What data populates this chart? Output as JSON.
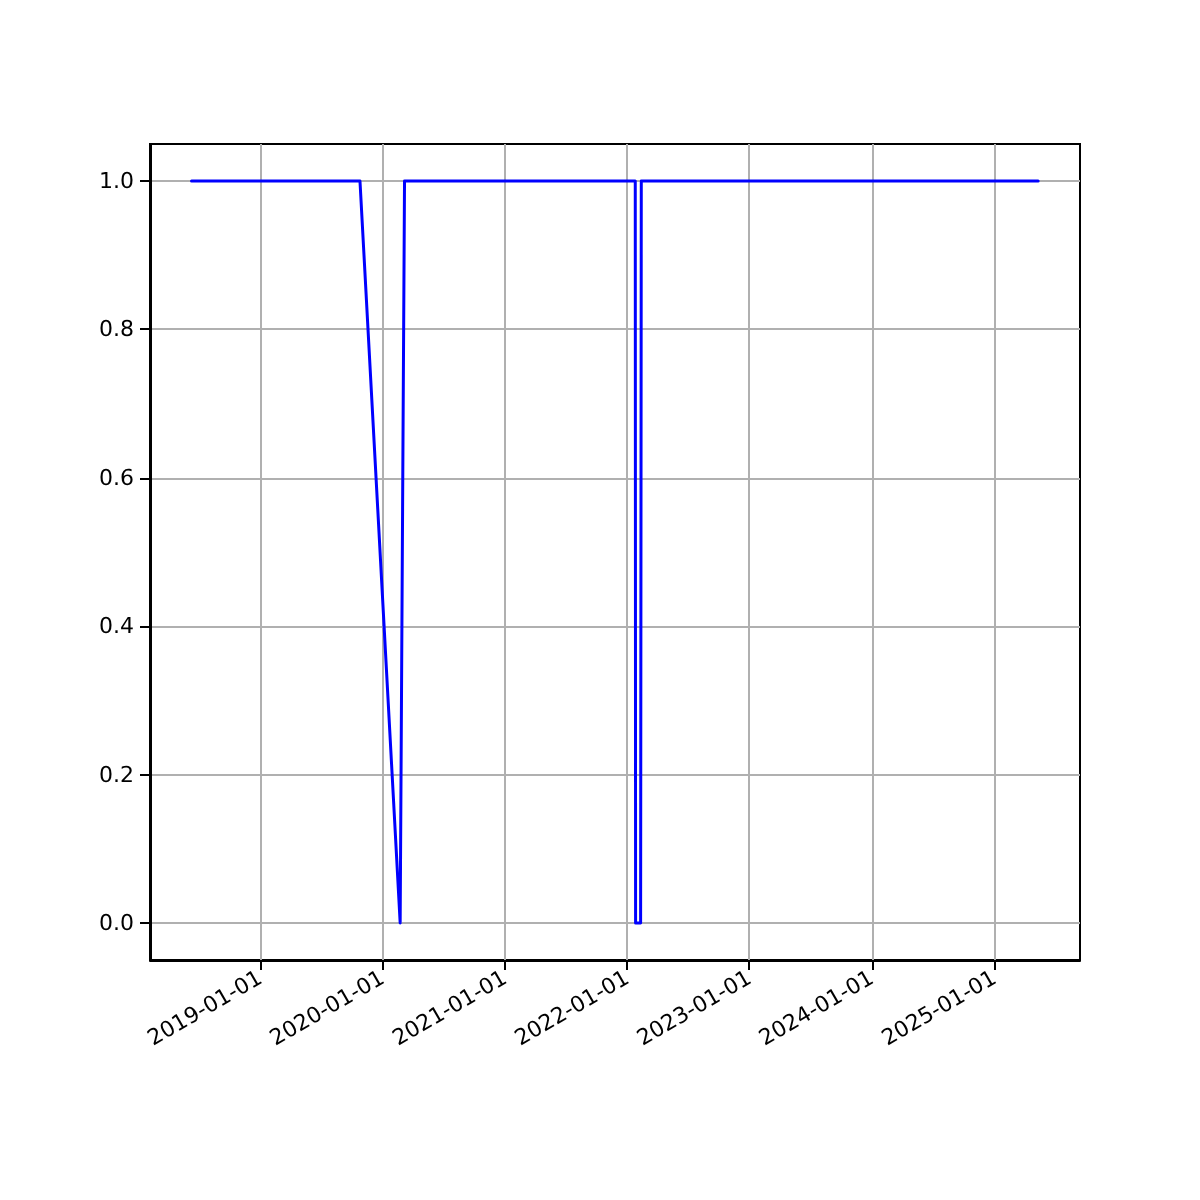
{
  "chart_data": {
    "type": "line",
    "x": [
      "2018-06-10",
      "2019-10-26",
      "2020-02-23",
      "2020-03-07",
      "2022-01-25",
      "2022-01-26",
      "2022-02-10",
      "2022-02-12",
      "2025-05-12"
    ],
    "series": [
      {
        "color": "#0000ff",
        "values": [
          1,
          1,
          0,
          1,
          1,
          0,
          0,
          1,
          1
        ]
      }
    ],
    "xlim": [
      "2018-02-06",
      "2025-09-14"
    ],
    "xticks": [
      "2019-01-01",
      "2020-01-01",
      "2021-01-01",
      "2022-01-01",
      "2023-01-01",
      "2024-01-01",
      "2025-01-01"
    ],
    "ylim": [
      -0.05,
      1.05
    ],
    "yticks": [
      {
        "value": 0,
        "label": "0.0"
      },
      {
        "value": 0.2,
        "label": "0.2"
      },
      {
        "value": 0.4,
        "label": "0.4"
      },
      {
        "value": 0.6,
        "label": "0.6"
      },
      {
        "value": 0.8,
        "label": "0.8"
      },
      {
        "value": 1,
        "label": "1.0"
      }
    ],
    "grid": true,
    "marker": "none",
    "line_style": "solid"
  }
}
